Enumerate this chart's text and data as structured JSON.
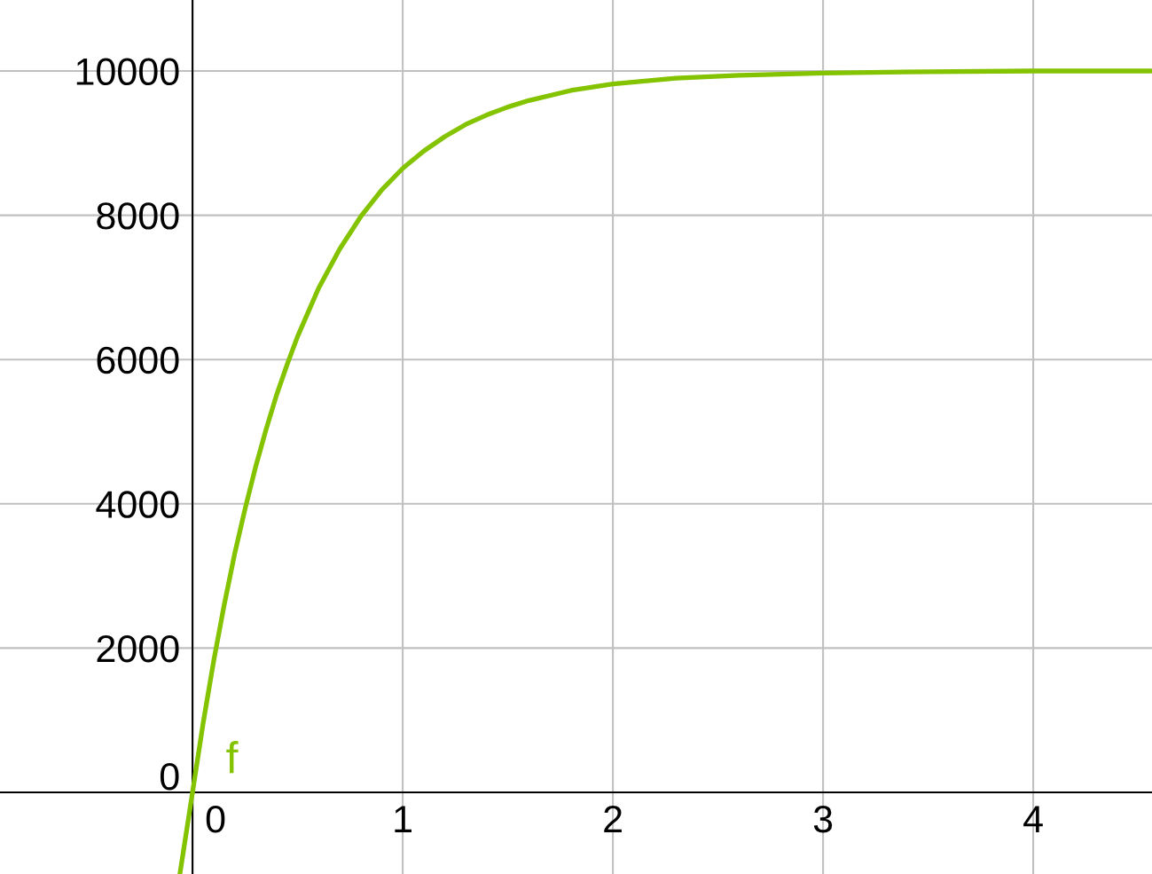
{
  "chart_data": {
    "type": "line",
    "x": [
      -0.06,
      0,
      0.05,
      0.1,
      0.15,
      0.2,
      0.25,
      0.3,
      0.35,
      0.4,
      0.45,
      0.5,
      0.6,
      0.7,
      0.8,
      0.9,
      1.0,
      1.1,
      1.2,
      1.3,
      1.4,
      1.5,
      1.6,
      1.8,
      2.0,
      2.3,
      2.6,
      3.0,
      3.5,
      4.0,
      4.56
    ],
    "series": [
      {
        "color": "#84c300",
        "values": [
          -1130,
          0,
          950,
          1810,
          2590,
          3300,
          3930,
          4510,
          5030,
          5510,
          5930,
          6320,
          6990,
          7530,
          7980,
          8350,
          8650,
          8890,
          9090,
          9260,
          9390,
          9500,
          9590,
          9730,
          9820,
          9900,
          9940,
          9970,
          9990,
          10000,
          10000
        ]
      }
    ],
    "xlim": [
      -0.916,
      4.565
    ],
    "ylim": [
      -1132,
      10984
    ],
    "xticks": [
      0,
      1,
      2,
      3,
      4
    ],
    "yticks": [
      0,
      2000,
      4000,
      6000,
      8000,
      10000
    ],
    "grid": true,
    "marker": "none",
    "line_style": "solid",
    "annotations": [
      "f"
    ]
  }
}
